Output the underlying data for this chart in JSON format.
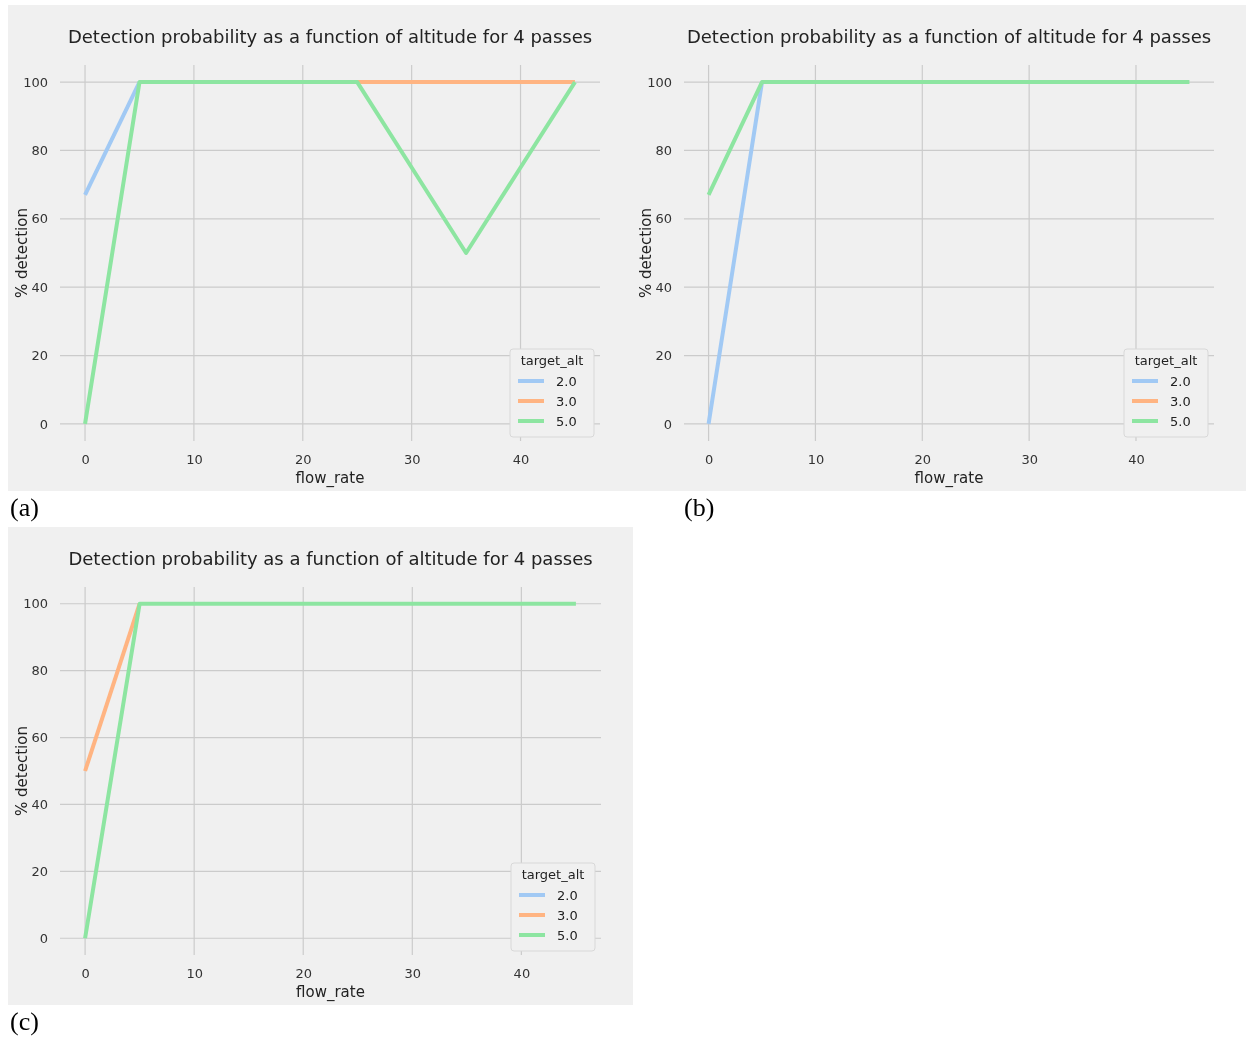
{
  "chart_data": [
    {
      "type": "line",
      "title": "Detection probability as a function of altitude for 4 passes",
      "xlabel": "flow_rate",
      "ylabel": "% detection",
      "legend_title": "target_alt",
      "x": [
        0,
        5,
        10,
        15,
        20,
        25,
        30,
        35,
        40,
        45
      ],
      "xlim": [
        -2.3,
        47.3
      ],
      "xticks": [
        0,
        10,
        20,
        30,
        40
      ],
      "ylim": [
        -5,
        105
      ],
      "yticks": [
        0,
        20,
        40,
        60,
        80,
        100
      ],
      "grid": true,
      "legend": "bottom right",
      "annotations": [
        "(a)"
      ],
      "series": [
        {
          "name": "2.0",
          "color": "#a1c9f4",
          "values": [
            67,
            100,
            null,
            null,
            null,
            null,
            null,
            null,
            null,
            null
          ]
        },
        {
          "name": "3.0",
          "color": "#ffb482",
          "values": [
            null,
            null,
            null,
            null,
            null,
            100,
            100,
            100,
            100,
            100
          ]
        },
        {
          "name": "5.0",
          "color": "#8de5a1",
          "values": [
            0,
            100,
            100,
            100,
            100,
            100,
            75,
            50,
            75,
            100
          ]
        }
      ]
    },
    {
      "type": "line",
      "title": "Detection probability as a function of altitude for 4 passes",
      "xlabel": "flow_rate",
      "ylabel": "% detection",
      "legend_title": "target_alt",
      "x": [
        0,
        5,
        10,
        15,
        20,
        25,
        30,
        35,
        40,
        45
      ],
      "xlim": [
        -2.3,
        47.3
      ],
      "xticks": [
        0,
        10,
        20,
        30,
        40
      ],
      "ylim": [
        -5,
        105
      ],
      "yticks": [
        0,
        20,
        40,
        60,
        80,
        100
      ],
      "grid": true,
      "legend": "bottom right",
      "annotations": [
        "(b)"
      ],
      "series": [
        {
          "name": "2.0",
          "color": "#a1c9f4",
          "values": [
            0,
            100,
            null,
            null,
            null,
            null,
            null,
            null,
            null,
            null
          ]
        },
        {
          "name": "3.0",
          "color": "#ffb482",
          "values": [
            null,
            null,
            null,
            null,
            null,
            null,
            null,
            null,
            null,
            null
          ]
        },
        {
          "name": "5.0",
          "color": "#8de5a1",
          "values": [
            67,
            100,
            100,
            100,
            100,
            100,
            100,
            100,
            100,
            100
          ]
        }
      ]
    },
    {
      "type": "line",
      "title": "Detection probability as a function of altitude for 4 passes",
      "xlabel": "flow_rate",
      "ylabel": "% detection",
      "legend_title": "target_alt",
      "x": [
        0,
        5,
        10,
        15,
        20,
        25,
        30,
        35,
        40,
        45
      ],
      "xlim": [
        -2.3,
        47.3
      ],
      "xticks": [
        0,
        10,
        20,
        30,
        40
      ],
      "ylim": [
        -5,
        105
      ],
      "yticks": [
        0,
        20,
        40,
        60,
        80,
        100
      ],
      "grid": true,
      "legend": "bottom right",
      "annotations": [
        "(c)"
      ],
      "series": [
        {
          "name": "2.0",
          "color": "#a1c9f4",
          "values": [
            null,
            null,
            null,
            null,
            null,
            null,
            null,
            null,
            null,
            null
          ]
        },
        {
          "name": "3.0",
          "color": "#ffb482",
          "values": [
            50,
            100,
            null,
            null,
            null,
            null,
            null,
            null,
            null,
            null
          ]
        },
        {
          "name": "5.0",
          "color": "#8de5a1",
          "values": [
            0,
            100,
            100,
            100,
            100,
            100,
            100,
            100,
            100,
            100
          ]
        }
      ]
    }
  ]
}
